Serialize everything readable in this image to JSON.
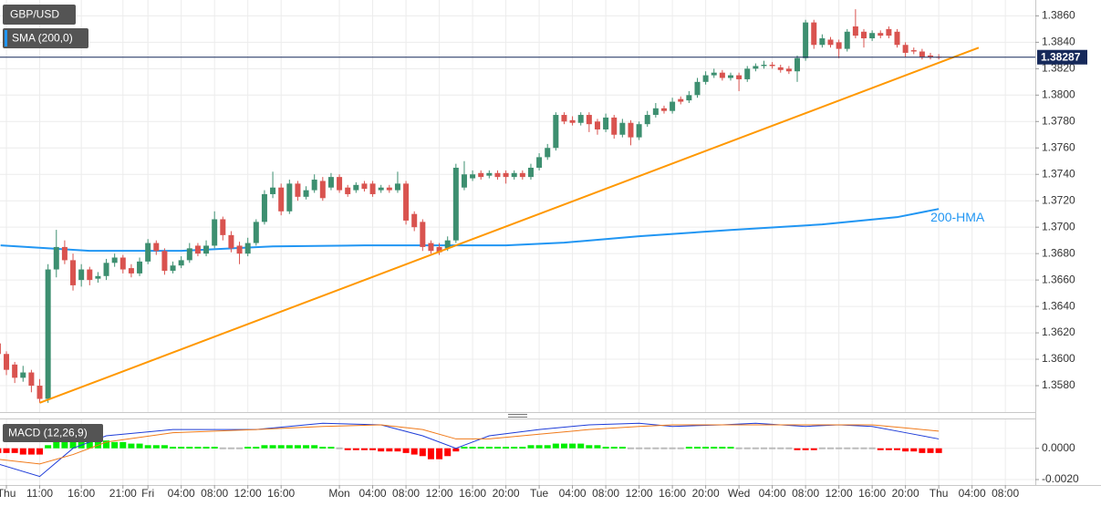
{
  "chart_data": [
    {
      "type": "candlestick",
      "title": "GBP/USD",
      "x": [
        -1,
        0,
        1,
        2,
        3,
        4,
        5,
        6,
        7,
        8,
        9,
        10,
        11,
        12,
        13,
        14,
        15,
        16,
        17,
        18,
        19,
        20,
        21,
        22,
        23,
        24,
        25,
        26,
        27,
        28,
        29,
        30,
        31,
        32,
        33,
        34,
        35,
        36,
        37,
        38,
        39,
        40,
        41,
        42,
        43,
        44,
        45,
        46,
        47,
        48,
        49,
        50,
        51,
        52,
        53,
        54,
        55,
        56,
        57,
        58,
        59,
        60,
        61,
        62,
        63,
        64,
        65,
        66,
        67,
        68,
        69,
        70,
        71,
        72,
        73,
        74,
        75,
        76,
        77,
        78,
        79,
        80,
        81,
        82,
        83,
        84,
        85,
        86,
        87,
        88,
        89,
        90,
        91,
        92,
        93,
        94,
        95,
        96,
        97,
        98,
        99,
        100,
        101,
        102,
        103,
        104,
        105,
        106,
        107,
        108,
        109,
        110,
        111,
        112
      ],
      "open": [
        1.3612,
        1.3604,
        1.3596,
        1.3586,
        1.359,
        1.358,
        1.357,
        1.3668,
        1.3685,
        1.3675,
        1.366,
        1.3668,
        1.3661,
        1.3663,
        1.3673,
        1.3677,
        1.3669,
        1.3665,
        1.3674,
        1.3688,
        1.3682,
        1.3667,
        1.3671,
        1.3675,
        1.3686,
        1.368,
        1.3686,
        1.3706,
        1.3694,
        1.3686,
        1.368,
        1.3688,
        1.3704,
        1.3725,
        1.373,
        1.3712,
        1.3733,
        1.3723,
        1.3728,
        1.3735,
        1.373,
        1.3738,
        1.373,
        1.3728,
        1.3733,
        1.3733,
        1.3728,
        1.373,
        1.3728,
        1.3733,
        1.371,
        1.3704,
        1.3688,
        1.3685,
        1.3684,
        1.369,
        1.373,
        1.3737,
        1.3741,
        1.3739,
        1.3741,
        1.3741,
        1.3738,
        1.3741,
        1.3738,
        1.3745,
        1.3753,
        1.376,
        1.3785,
        1.3781,
        1.3779,
        1.3785,
        1.378,
        1.3774,
        1.3783,
        1.377,
        1.3779,
        1.3768,
        1.3778,
        1.3785,
        1.379,
        1.3788,
        1.3797,
        1.3796,
        1.38,
        1.381,
        1.3815,
        1.3817,
        1.3813,
        1.3815,
        1.3812,
        1.382,
        1.3822,
        1.3823,
        1.3821,
        1.382,
        1.3818,
        1.3828,
        1.3855,
        1.3838,
        1.3842,
        1.384,
        1.3835,
        1.3852,
        1.3848,
        1.3843,
        1.3847,
        1.385,
        1.3848,
        1.3838,
        1.3834,
        1.3833,
        1.383,
        1.3829
      ],
      "high": [
        1.3615,
        1.3606,
        1.3598,
        1.3595,
        1.3592,
        1.3585,
        1.3672,
        1.3698,
        1.369,
        1.368,
        1.3672,
        1.367,
        1.3666,
        1.3676,
        1.368,
        1.3679,
        1.3672,
        1.3677,
        1.3691,
        1.369,
        1.3684,
        1.3674,
        1.3678,
        1.3688,
        1.3688,
        1.369,
        1.3712,
        1.3708,
        1.3697,
        1.3689,
        1.3692,
        1.3706,
        1.3728,
        1.3742,
        1.3733,
        1.3736,
        1.3735,
        1.3731,
        1.374,
        1.3738,
        1.3741,
        1.374,
        1.3732,
        1.3734,
        1.3735,
        1.3735,
        1.3732,
        1.3732,
        1.3742,
        1.3735,
        1.3712,
        1.3706,
        1.369,
        1.3688,
        1.3693,
        1.3748,
        1.375,
        1.3743,
        1.3743,
        1.3743,
        1.3743,
        1.3743,
        1.3743,
        1.3743,
        1.3748,
        1.3756,
        1.3763,
        1.3787,
        1.3787,
        1.3784,
        1.3787,
        1.3787,
        1.3782,
        1.3786,
        1.3785,
        1.3782,
        1.3781,
        1.378,
        1.3788,
        1.3794,
        1.3792,
        1.3798,
        1.3799,
        1.3803,
        1.3813,
        1.3818,
        1.382,
        1.3819,
        1.3817,
        1.3817,
        1.3822,
        1.3824,
        1.3826,
        1.3825,
        1.3823,
        1.3822,
        1.383,
        1.3857,
        1.3857,
        1.3846,
        1.3844,
        1.3842,
        1.385,
        1.3865,
        1.385,
        1.3849,
        1.3849,
        1.3852,
        1.385,
        1.384,
        1.3836,
        1.3835,
        1.3832,
        1.3831
      ],
      "low": [
        1.36,
        1.3588,
        1.3582,
        1.3583,
        1.3575,
        1.3567,
        1.3567,
        1.3662,
        1.3672,
        1.3652,
        1.3655,
        1.3656,
        1.3658,
        1.366,
        1.367,
        1.3665,
        1.3662,
        1.3663,
        1.3672,
        1.3679,
        1.3664,
        1.3665,
        1.3669,
        1.3673,
        1.3678,
        1.3678,
        1.3684,
        1.369,
        1.3681,
        1.3672,
        1.3678,
        1.3686,
        1.3702,
        1.3722,
        1.3709,
        1.371,
        1.372,
        1.3721,
        1.3726,
        1.372,
        1.3728,
        1.3726,
        1.3723,
        1.3726,
        1.3727,
        1.3723,
        1.3726,
        1.3726,
        1.3726,
        1.3702,
        1.3697,
        1.3682,
        1.368,
        1.3679,
        1.3682,
        1.3688,
        1.3728,
        1.3735,
        1.3736,
        1.3737,
        1.3736,
        1.3733,
        1.3736,
        1.3736,
        1.3736,
        1.3743,
        1.3751,
        1.3758,
        1.3778,
        1.3777,
        1.3777,
        1.3772,
        1.377,
        1.3772,
        1.3767,
        1.3768,
        1.3762,
        1.3766,
        1.3776,
        1.3783,
        1.3786,
        1.3786,
        1.3793,
        1.3794,
        1.3798,
        1.3808,
        1.3813,
        1.3811,
        1.3811,
        1.3803,
        1.381,
        1.3818,
        1.382,
        1.382,
        1.3817,
        1.3816,
        1.381,
        1.3826,
        1.3835,
        1.3836,
        1.3836,
        1.3828,
        1.3833,
        1.3843,
        1.3836,
        1.3841,
        1.3843,
        1.3843,
        1.3836,
        1.3829,
        1.3831,
        1.3827,
        1.3827,
        1.3827
      ],
      "close": [
        1.3604,
        1.3592,
        1.3586,
        1.359,
        1.358,
        1.357,
        1.3668,
        1.3685,
        1.3675,
        1.3656,
        1.3668,
        1.366,
        1.3663,
        1.3673,
        1.3677,
        1.3668,
        1.3665,
        1.3674,
        1.3688,
        1.3682,
        1.3667,
        1.3671,
        1.3675,
        1.3684,
        1.368,
        1.3686,
        1.3706,
        1.3694,
        1.3684,
        1.368,
        1.3688,
        1.3704,
        1.3725,
        1.373,
        1.3712,
        1.3733,
        1.3723,
        1.3728,
        1.3736,
        1.3722,
        1.3738,
        1.3728,
        1.3725,
        1.3732,
        1.3729,
        1.3725,
        1.373,
        1.3728,
        1.3733,
        1.3705,
        1.37,
        1.3685,
        1.3682,
        1.3681,
        1.369,
        1.3745,
        1.374,
        1.374,
        1.3738,
        1.3741,
        1.3738,
        1.3738,
        1.3741,
        1.3738,
        1.3745,
        1.3753,
        1.376,
        1.3785,
        1.378,
        1.3779,
        1.3785,
        1.3778,
        1.3774,
        1.3783,
        1.377,
        1.3779,
        1.3768,
        1.3778,
        1.3785,
        1.379,
        1.3788,
        1.3795,
        1.3795,
        1.38,
        1.381,
        1.3815,
        1.3817,
        1.3813,
        1.3815,
        1.3812,
        1.382,
        1.3822,
        1.3823,
        1.3822,
        1.3819,
        1.3818,
        1.3828,
        1.3855,
        1.3838,
        1.3843,
        1.3838,
        1.3835,
        1.3848,
        1.3845,
        1.3843,
        1.3847,
        1.3845,
        1.3845,
        1.3838,
        1.3832,
        1.3833,
        1.3829,
        1.3829,
        1.38287
      ],
      "up_color": "#3d8f70",
      "down_color": "#d9534f",
      "lines": [
        {
          "name": "SMA (200,0)",
          "color": "#2196f3",
          "annotation": "200-HMA",
          "x": [
            -0.7,
            10,
            21,
            32,
            43,
            54,
            60,
            67,
            76,
            87,
            98,
            107,
            112
          ],
          "values": [
            1.36862,
            1.36821,
            1.36821,
            1.36855,
            1.36862,
            1.36862,
            1.36862,
            1.36883,
            1.36931,
            1.36979,
            1.37021,
            1.37076,
            1.37138
          ]
        }
      ],
      "trend_line": {
        "color": "#ff9800",
        "x": [
          4,
          116.8
        ],
        "values": [
          1.3567,
          1.38359
        ]
      },
      "last_price": {
        "value": 1.38287,
        "color": "#16295a"
      },
      "xlim": [
        -0.77,
        123.6
      ],
      "ylim": [
        1.356,
        1.3872
      ],
      "xticks": [
        {
          "value": 0,
          "label": "Thu"
        },
        {
          "value": 4,
          "label": "11:00"
        },
        {
          "value": 9,
          "label": "16:00"
        },
        {
          "value": 14,
          "label": "21:00"
        },
        {
          "value": 17,
          "label": "Fri"
        },
        {
          "value": 21,
          "label": "04:00"
        },
        {
          "value": 25,
          "label": "08:00"
        },
        {
          "value": 29,
          "label": "12:00"
        },
        {
          "value": 33,
          "label": "16:00"
        },
        {
          "value": 40,
          "label": "Mon"
        },
        {
          "value": 44,
          "label": "04:00"
        },
        {
          "value": 48,
          "label": "08:00"
        },
        {
          "value": 52,
          "label": "12:00"
        },
        {
          "value": 56,
          "label": "16:00"
        },
        {
          "value": 60,
          "label": "20:00"
        },
        {
          "value": 64,
          "label": "Tue"
        },
        {
          "value": 68,
          "label": "04:00"
        },
        {
          "value": 72,
          "label": "08:00"
        },
        {
          "value": 76,
          "label": "12:00"
        },
        {
          "value": 80,
          "label": "16:00"
        },
        {
          "value": 84,
          "label": "20:00"
        },
        {
          "value": 88,
          "label": "Wed"
        },
        {
          "value": 92,
          "label": "04:00"
        },
        {
          "value": 96,
          "label": "08:00"
        },
        {
          "value": 100,
          "label": "12:00"
        },
        {
          "value": 104,
          "label": "16:00"
        },
        {
          "value": 108,
          "label": "20:00"
        },
        {
          "value": 112,
          "label": "Thu"
        },
        {
          "value": 116,
          "label": "04:00"
        },
        {
          "value": 120,
          "label": "08:00"
        }
      ],
      "yticks": [
        {
          "value": 1.358,
          "label": "1.3580"
        },
        {
          "value": 1.36,
          "label": "1.3600"
        },
        {
          "value": 1.362,
          "label": "1.3620"
        },
        {
          "value": 1.364,
          "label": "1.3640"
        },
        {
          "value": 1.366,
          "label": "1.3660"
        },
        {
          "value": 1.368,
          "label": "1.3680"
        },
        {
          "value": 1.37,
          "label": "1.3700"
        },
        {
          "value": 1.372,
          "label": "1.3720"
        },
        {
          "value": 1.374,
          "label": "1.3740"
        },
        {
          "value": 1.376,
          "label": "1.3760"
        },
        {
          "value": 1.378,
          "label": "1.3780"
        },
        {
          "value": 1.38,
          "label": "1.3800"
        },
        {
          "value": 1.382,
          "label": "1.3820"
        },
        {
          "value": 1.384,
          "label": "1.3840"
        },
        {
          "value": 1.386,
          "label": "1.3860"
        }
      ],
      "grid": true
    },
    {
      "type": "macd",
      "title": "MACD (12,26,9)",
      "x": [
        -1,
        0,
        1,
        2,
        3,
        4,
        5,
        6,
        7,
        8,
        9,
        10,
        11,
        12,
        13,
        14,
        15,
        16,
        17,
        18,
        19,
        20,
        21,
        22,
        23,
        24,
        25,
        26,
        27,
        28,
        29,
        30,
        31,
        32,
        33,
        34,
        35,
        36,
        37,
        38,
        39,
        40,
        41,
        42,
        43,
        44,
        45,
        46,
        47,
        48,
        49,
        50,
        51,
        52,
        53,
        54,
        55,
        56,
        57,
        58,
        59,
        60,
        61,
        62,
        63,
        64,
        65,
        66,
        67,
        68,
        69,
        70,
        71,
        72,
        73,
        74,
        75,
        76,
        77,
        78,
        79,
        80,
        81,
        82,
        83,
        84,
        85,
        86,
        87,
        88,
        89,
        90,
        91,
        92,
        93,
        94,
        95,
        96,
        97,
        98,
        99,
        100,
        101,
        102,
        103,
        104,
        105,
        106,
        107,
        108,
        109,
        110,
        111,
        112
      ],
      "histogram": [
        -0.0003,
        -0.0003,
        -0.0003,
        -0.0004,
        -0.0004,
        -0.0004,
        0.0002,
        0.0004,
        0.0005,
        0.0006,
        0.0006,
        0.0006,
        0.0005,
        0.0005,
        0.0004,
        0.0004,
        0.0003,
        0.0003,
        0.0002,
        0.0002,
        0.0002,
        0.0001,
        0.0001,
        0.0001,
        0.0001,
        0.0001,
        0.0001,
        0,
        0,
        0,
        0.0001,
        0.0001,
        0.0002,
        0.0002,
        0.0002,
        0.0002,
        0.0002,
        0.0002,
        0.0002,
        0.0001,
        0.0001,
        0,
        -0.0001,
        -0.0001,
        -0.0001,
        -0.0001,
        -0.0002,
        -0.0002,
        -0.0002,
        -0.0003,
        -0.0004,
        -0.0005,
        -0.0007,
        -0.0007,
        -0.0005,
        -0.0002,
        0.0001,
        0.0001,
        0.0001,
        0.0001,
        0.0001,
        0.0001,
        0.0001,
        0.0001,
        0.0002,
        0.0002,
        0.0002,
        0.0003,
        0.0003,
        0.0003,
        0.0003,
        0.0002,
        0.0002,
        0.0001,
        0.0001,
        0.0001,
        0,
        0,
        0,
        0,
        0,
        0,
        0,
        0.0001,
        0.0001,
        0.0001,
        0.0001,
        0.0001,
        0.0001,
        0,
        0,
        0,
        0,
        0,
        0,
        0,
        -0.0001,
        -0.0001,
        -0.0001,
        0,
        0,
        0,
        0,
        0,
        0,
        0,
        -0.0001,
        -0.0001,
        -0.0001,
        -0.0002,
        -0.0002,
        -0.0003,
        -0.0003,
        -0.0003
      ],
      "histogram_colors": {
        "positive": "#00ee00",
        "negative": "#ff0000",
        "zero": "#bbbbbb"
      },
      "series": [
        {
          "color": "#1e3cd8",
          "x": [
            -1,
            4,
            8,
            12,
            20,
            30,
            38,
            45,
            50,
            54,
            58,
            64,
            70,
            76,
            80,
            86,
            90,
            96,
            100,
            104,
            108,
            112
          ],
          "values": [
            -0.001,
            -0.0018,
            0,
            0.0008,
            0.0012,
            0.0012,
            0.0016,
            0.0015,
            0.0008,
            0,
            0.0008,
            0.0012,
            0.0015,
            0.0016,
            0.0014,
            0.0015,
            0.0016,
            0.0014,
            0.0015,
            0.0014,
            0.001,
            0.0006
          ]
        },
        {
          "color": "#f07a1a",
          "x": [
            -1,
            4,
            8,
            12,
            20,
            30,
            38,
            45,
            50,
            54,
            58,
            64,
            70,
            76,
            80,
            86,
            90,
            96,
            100,
            104,
            108,
            112
          ],
          "values": [
            -0.0007,
            -0.001,
            -0.0004,
            0.0004,
            0.001,
            0.0012,
            0.0014,
            0.0015,
            0.0012,
            0.0006,
            0.0006,
            0.0009,
            0.0012,
            0.0014,
            0.0015,
            0.0015,
            0.0015,
            0.0015,
            0.0015,
            0.0015,
            0.0013,
            0.0011
          ]
        }
      ],
      "xlim": [
        -0.77,
        123.6
      ],
      "ylim": [
        -0.00235,
        0.00185
      ],
      "yticks": [
        {
          "value": 0,
          "label": "0.0000"
        },
        {
          "value": -0.002,
          "label": "-0.0020"
        }
      ],
      "grid": true
    }
  ]
}
